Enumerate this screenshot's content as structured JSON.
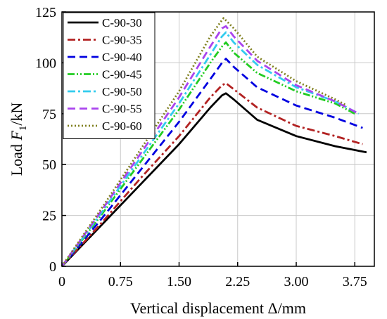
{
  "chart_data": {
    "type": "line",
    "xlabel": "Vertical displacement Δ/mm",
    "ylabel_prefix": "Load ",
    "ylabel_var": "F",
    "ylabel_sub": "1",
    "ylabel_unit": "/kN",
    "xlim": [
      0,
      4.0
    ],
    "ylim": [
      0,
      125
    ],
    "xticks": [
      0,
      0.75,
      1.5,
      2.25,
      3.0,
      3.75
    ],
    "xtick_labels": [
      "0",
      "0.75",
      "1.50",
      "2.25",
      "3.00",
      "3.75"
    ],
    "yticks": [
      0,
      25,
      50,
      75,
      100,
      125
    ],
    "ytick_labels": [
      "0",
      "25",
      "50",
      "75",
      "100",
      "125"
    ],
    "grid": true,
    "legend_position": "top-left",
    "series": [
      {
        "name": "C-90-30",
        "color": "#000000",
        "dash": "solid",
        "points": [
          [
            0,
            0
          ],
          [
            0.5,
            20
          ],
          [
            1.0,
            40
          ],
          [
            1.5,
            60
          ],
          [
            1.9,
            78
          ],
          [
            2.05,
            84
          ],
          [
            2.1,
            85
          ],
          [
            2.2,
            82
          ],
          [
            2.5,
            72
          ],
          [
            3.0,
            64
          ],
          [
            3.5,
            59
          ],
          [
            3.9,
            56
          ]
        ]
      },
      {
        "name": "C-90-35",
        "color": "#b22222",
        "dash": "dashdot",
        "points": [
          [
            0,
            0
          ],
          [
            0.5,
            21
          ],
          [
            1.0,
            43
          ],
          [
            1.5,
            64
          ],
          [
            1.9,
            83
          ],
          [
            2.05,
            89
          ],
          [
            2.1,
            90
          ],
          [
            2.2,
            87
          ],
          [
            2.5,
            78
          ],
          [
            3.0,
            69
          ],
          [
            3.5,
            64
          ],
          [
            3.85,
            60
          ]
        ]
      },
      {
        "name": "C-90-40",
        "color": "#0000e0",
        "dash": "dashed",
        "points": [
          [
            0,
            0
          ],
          [
            0.5,
            23
          ],
          [
            1.0,
            47
          ],
          [
            1.5,
            71
          ],
          [
            1.9,
            92
          ],
          [
            2.05,
            100
          ],
          [
            2.1,
            102
          ],
          [
            2.2,
            98
          ],
          [
            2.5,
            88
          ],
          [
            3.0,
            79
          ],
          [
            3.5,
            73
          ],
          [
            3.85,
            68
          ]
        ]
      },
      {
        "name": "C-90-45",
        "color": "#22cc22",
        "dash": "dashdotdot",
        "points": [
          [
            0,
            0
          ],
          [
            0.5,
            25
          ],
          [
            1.0,
            51
          ],
          [
            1.5,
            77
          ],
          [
            1.9,
            100
          ],
          [
            2.05,
            108
          ],
          [
            2.1,
            110
          ],
          [
            2.2,
            105
          ],
          [
            2.5,
            95
          ],
          [
            3.0,
            86
          ],
          [
            3.5,
            80
          ],
          [
            3.75,
            75
          ]
        ]
      },
      {
        "name": "C-90-50",
        "color": "#33ccee",
        "dash": "dashdot",
        "points": [
          [
            0,
            0
          ],
          [
            0.5,
            26
          ],
          [
            1.0,
            53
          ],
          [
            1.5,
            80
          ],
          [
            1.9,
            104
          ],
          [
            2.05,
            113
          ],
          [
            2.1,
            115
          ],
          [
            2.2,
            110
          ],
          [
            2.5,
            99
          ],
          [
            3.0,
            88
          ],
          [
            3.5,
            81
          ],
          [
            3.8,
            75
          ]
        ]
      },
      {
        "name": "C-90-55",
        "color": "#aa44ee",
        "dash": "dashed",
        "points": [
          [
            0,
            0
          ],
          [
            0.5,
            27
          ],
          [
            1.0,
            55
          ],
          [
            1.5,
            83
          ],
          [
            1.9,
            108
          ],
          [
            2.05,
            117
          ],
          [
            2.1,
            118
          ],
          [
            2.2,
            113
          ],
          [
            2.5,
            101
          ],
          [
            3.0,
            89
          ],
          [
            3.5,
            81
          ],
          [
            3.8,
            75
          ]
        ]
      },
      {
        "name": "C-90-60",
        "color": "#808020",
        "dash": "dotted",
        "points": [
          [
            0,
            0
          ],
          [
            0.5,
            28
          ],
          [
            1.0,
            57
          ],
          [
            1.5,
            86
          ],
          [
            1.9,
            113
          ],
          [
            2.05,
            121
          ],
          [
            2.07,
            122
          ],
          [
            2.2,
            117
          ],
          [
            2.5,
            103
          ],
          [
            3.0,
            91
          ],
          [
            3.5,
            82
          ],
          [
            3.65,
            79
          ]
        ]
      }
    ]
  }
}
